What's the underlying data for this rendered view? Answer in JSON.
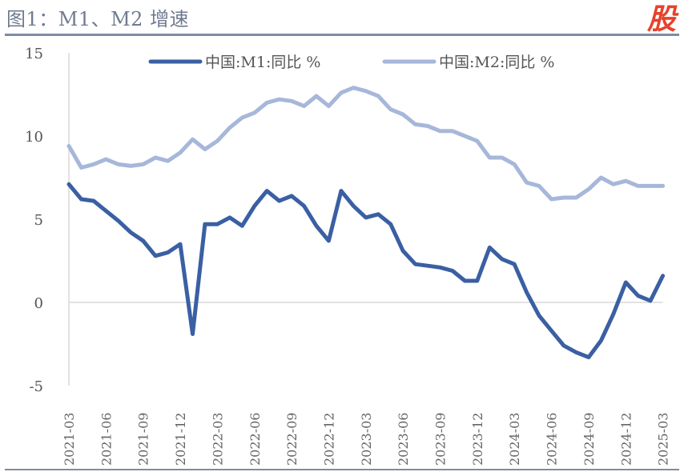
{
  "title": "图1：M1、M2 增速",
  "watermark": "股",
  "colors": {
    "m1": "#3a5fa3",
    "m2": "#a6b7da",
    "axis": "#d9d9d9",
    "title": "#6f7b8f",
    "watermark": "#e8412c"
  },
  "chart_data": {
    "type": "line",
    "title": "图1：M1、M2 增速",
    "xlabel": "",
    "ylabel": "",
    "ylim": [
      -5,
      15
    ],
    "yticks": [
      15,
      10,
      5,
      0,
      -5
    ],
    "xtick_labels": [
      "2021-03",
      "2021-06",
      "2021-09",
      "2021-12",
      "2022-03",
      "2022-06",
      "2022-09",
      "2022-12",
      "2023-03",
      "2023-06",
      "2023-09",
      "2023-12",
      "2024-03",
      "2024-06",
      "2024-09",
      "2024-12",
      "2025-03"
    ],
    "legend_position": "top",
    "x": [
      "2021-03",
      "2021-04",
      "2021-05",
      "2021-06",
      "2021-07",
      "2021-08",
      "2021-09",
      "2021-10",
      "2021-11",
      "2021-12",
      "2022-01",
      "2022-02",
      "2022-03",
      "2022-04",
      "2022-05",
      "2022-06",
      "2022-07",
      "2022-08",
      "2022-09",
      "2022-10",
      "2022-11",
      "2022-12",
      "2023-01",
      "2023-02",
      "2023-03",
      "2023-04",
      "2023-05",
      "2023-06",
      "2023-07",
      "2023-08",
      "2023-09",
      "2023-10",
      "2023-11",
      "2023-12",
      "2024-01",
      "2024-02",
      "2024-03",
      "2024-04",
      "2024-05",
      "2024-06",
      "2024-07",
      "2024-08",
      "2024-09",
      "2024-10",
      "2024-11",
      "2024-12",
      "2025-01",
      "2025-02",
      "2025-03"
    ],
    "series": [
      {
        "name": "中国:M1:同比 %",
        "color": "#3a5fa3",
        "values": [
          7.1,
          6.2,
          6.1,
          5.5,
          4.9,
          4.2,
          3.7,
          2.8,
          3.0,
          3.5,
          -1.9,
          4.7,
          4.7,
          5.1,
          4.6,
          5.8,
          6.7,
          6.1,
          6.4,
          5.8,
          4.6,
          3.7,
          6.7,
          5.8,
          5.1,
          5.3,
          4.7,
          3.1,
          2.3,
          2.2,
          2.1,
          1.9,
          1.3,
          1.3,
          3.3,
          2.6,
          2.3,
          0.6,
          -0.8,
          -1.7,
          -2.6,
          -3.0,
          -3.3,
          -2.3,
          -0.7,
          1.2,
          0.4,
          0.1,
          1.6
        ]
      },
      {
        "name": "中国:M2:同比 %",
        "color": "#a6b7da",
        "values": [
          9.4,
          8.1,
          8.3,
          8.6,
          8.3,
          8.2,
          8.3,
          8.7,
          8.5,
          9.0,
          9.8,
          9.2,
          9.7,
          10.5,
          11.1,
          11.4,
          12.0,
          12.2,
          12.1,
          11.8,
          12.4,
          11.8,
          12.6,
          12.9,
          12.7,
          12.4,
          11.6,
          11.3,
          10.7,
          10.6,
          10.3,
          10.3,
          10.0,
          9.7,
          8.7,
          8.7,
          8.3,
          7.2,
          7.0,
          6.2,
          6.3,
          6.3,
          6.8,
          7.5,
          7.1,
          7.3,
          7.0,
          7.0,
          7.0
        ]
      }
    ]
  }
}
